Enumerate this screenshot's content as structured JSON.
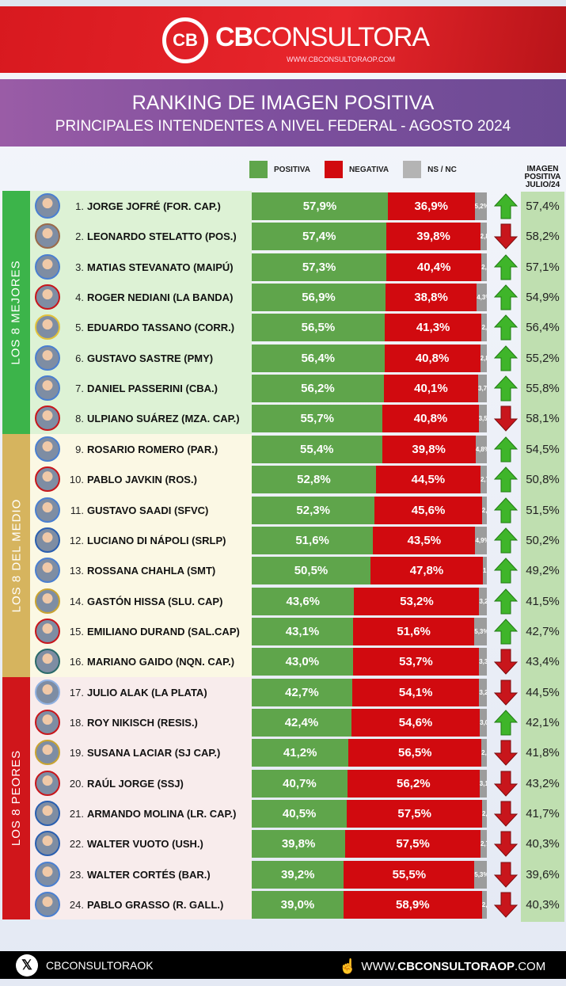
{
  "header": {
    "logo_mark": "CB",
    "brand_bold": "CB",
    "brand_rest": "CONSULTORA",
    "url": "WWW.CBCONSULTORAOP.COM"
  },
  "title": {
    "line1": "RANKING DE IMAGEN POSITIVA",
    "line2": "PRINCIPALES INTENDENTES A NIVEL FEDERAL - AGOSTO 2024"
  },
  "footer": {
    "handle": "CBCONSULTORAOK",
    "url_prefix": "WWW.",
    "url_bold": "CBCONSULTORAOP",
    "url_suffix": ".COM"
  },
  "chart_data": {
    "type": "bar",
    "stacked": true,
    "orientation": "horizontal",
    "xlim": [
      0,
      100
    ],
    "legend": [
      "POSITIVA",
      "NEGATIVA",
      "NS / NC"
    ],
    "legend_placement": "top",
    "colors": {
      "positiva": "#5fa54b",
      "negativa": "#d10a0f",
      "nsnc": "#9c9c9c",
      "up": "#3fb52a",
      "down": "#c8161c"
    },
    "previous_header": "IMAGEN POSITIVA JULIO/24",
    "groups": [
      {
        "label": "LOS 8 MEJORES",
        "color": "#3cb44a",
        "bg": "#ddf2d5",
        "from": 1,
        "to": 8
      },
      {
        "label": "LOS 8 DEL MEDIO",
        "color": "#d6b45e",
        "bg": "#fbf8e4",
        "from": 9,
        "to": 16
      },
      {
        "label": "LOS 8 PEORES",
        "color": "#d0161b",
        "bg": "#f8ecec",
        "from": 17,
        "to": 24
      }
    ],
    "rows": [
      {
        "rank": "1.",
        "name": "JORGE JOFRÉ (FOR. CAP.)",
        "positiva": "57,9%",
        "negativa": "36,9%",
        "nsnc": "5,2%",
        "trend": "up",
        "julio": "57,4%",
        "ring": "#4a7fd0"
      },
      {
        "rank": "2.",
        "name": "LEONARDO STELATTO (POS.)",
        "positiva": "57,4%",
        "negativa": "39,8%",
        "nsnc": "2,8%",
        "trend": "down",
        "julio": "58,2%",
        "ring": "#9a6a4a"
      },
      {
        "rank": "3.",
        "name": "MATIAS STEVANATO (MAIPÚ)",
        "positiva": "57,3%",
        "negativa": "40,4%",
        "nsnc": "2,3%",
        "trend": "up",
        "julio": "57,1%",
        "ring": "#4a7fd0"
      },
      {
        "rank": "4.",
        "name": "ROGER NEDIANI (LA BANDA)",
        "positiva": "56,9%",
        "negativa": "38,8%",
        "nsnc": "4,3%",
        "trend": "up",
        "julio": "54,9%",
        "ring": "#c8161c"
      },
      {
        "rank": "5.",
        "name": "EDUARDO TASSANO (CORR.)",
        "positiva": "56,5%",
        "negativa": "41,3%",
        "nsnc": "2,2%",
        "trend": "up",
        "julio": "56,4%",
        "ring": "#e2c23a"
      },
      {
        "rank": "6.",
        "name": "GUSTAVO SASTRE (PMY)",
        "positiva": "56,4%",
        "negativa": "40,8%",
        "nsnc": "2,8%",
        "trend": "up",
        "julio": "55,2%",
        "ring": "#4a7fd0"
      },
      {
        "rank": "7.",
        "name": "DANIEL PASSERINI (CBA.)",
        "positiva": "56,2%",
        "negativa": "40,1%",
        "nsnc": "3,7%",
        "trend": "up",
        "julio": "55,8%",
        "ring": "#4a7fd0"
      },
      {
        "rank": "8.",
        "name": "ULPIANO SUÁREZ (MZA. CAP.)",
        "positiva": "55,7%",
        "negativa": "40,8%",
        "nsnc": "3,5%",
        "trend": "down",
        "julio": "58,1%",
        "ring": "#c8161c"
      },
      {
        "rank": "9.",
        "name": "ROSARIO ROMERO (PAR.)",
        "positiva": "55,4%",
        "negativa": "39,8%",
        "nsnc": "4,8%",
        "trend": "up",
        "julio": "54,5%",
        "ring": "#4a7fd0"
      },
      {
        "rank": "10.",
        "name": "PABLO JAVKIN (ROS.)",
        "positiva": "52,8%",
        "negativa": "44,5%",
        "nsnc": "2,7%",
        "trend": "up",
        "julio": "50,8%",
        "ring": "#c8161c"
      },
      {
        "rank": "11.",
        "name": "GUSTAVO SAADI (SFVC)",
        "positiva": "52,3%",
        "negativa": "45,6%",
        "nsnc": "2,1%",
        "trend": "up",
        "julio": "51,5%",
        "ring": "#4a7fd0"
      },
      {
        "rank": "12.",
        "name": "LUCIANO DI NÁPOLI (SRLP)",
        "positiva": "51,6%",
        "negativa": "43,5%",
        "nsnc": "4,9%",
        "trend": "up",
        "julio": "50,2%",
        "ring": "#2a5fb0"
      },
      {
        "rank": "13.",
        "name": "ROSSANA CHAHLA (SMT)",
        "positiva": "50,5%",
        "negativa": "47,8%",
        "nsnc": "1,7%",
        "trend": "up",
        "julio": "49,2%",
        "ring": "#4a7fd0"
      },
      {
        "rank": "14.",
        "name": "GASTÓN HISSA (SLU. CAP)",
        "positiva": "43,6%",
        "negativa": "53,2%",
        "nsnc": "3,2%",
        "trend": "up",
        "julio": "41,5%",
        "ring": "#c9a431"
      },
      {
        "rank": "15.",
        "name": "EMILIANO DURAND (SAL.CAP)",
        "positiva": "43,1%",
        "negativa": "51,6%",
        "nsnc": "5,3%",
        "trend": "up",
        "julio": "42,7%",
        "ring": "#c8161c"
      },
      {
        "rank": "16.",
        "name": "MARIANO GAIDO (NQN. CAP.)",
        "positiva": "43,0%",
        "negativa": "53,7%",
        "nsnc": "3,3%",
        "trend": "down",
        "julio": "43,4%",
        "ring": "#2a6a6a"
      },
      {
        "rank": "17.",
        "name": "JULIO ALAK (LA PLATA)",
        "positiva": "42,7%",
        "negativa": "54,1%",
        "nsnc": "3,2%",
        "trend": "down",
        "julio": "44,5%",
        "ring": "#8fb0e0"
      },
      {
        "rank": "18.",
        "name": "ROY NIKISCH (RESIS.)",
        "positiva": "42,4%",
        "negativa": "54,6%",
        "nsnc": "3,0%",
        "trend": "up",
        "julio": "42,1%",
        "ring": "#c8161c"
      },
      {
        "rank": "19.",
        "name": "SUSANA LACIAR (SJ CAP.)",
        "positiva": "41,2%",
        "negativa": "56,5%",
        "nsnc": "2,3%",
        "trend": "down",
        "julio": "41,8%",
        "ring": "#c9a431"
      },
      {
        "rank": "20.",
        "name": "RAÚL JORGE (SSJ)",
        "positiva": "40,7%",
        "negativa": "56,2%",
        "nsnc": "3,1%",
        "trend": "down",
        "julio": "43,2%",
        "ring": "#c8161c"
      },
      {
        "rank": "21.",
        "name": "ARMANDO MOLINA (LR. CAP.)",
        "positiva": "40,5%",
        "negativa": "57,5%",
        "nsnc": "2,0%",
        "trend": "down",
        "julio": "41,7%",
        "ring": "#2a5fb0"
      },
      {
        "rank": "22.",
        "name": "WALTER VUOTO (USH.)",
        "positiva": "39,8%",
        "negativa": "57,5%",
        "nsnc": "2,7%",
        "trend": "down",
        "julio": "40,3%",
        "ring": "#2a5fb0"
      },
      {
        "rank": "23.",
        "name": "WALTER CORTÉS (BAR.)",
        "positiva": "39,2%",
        "negativa": "55,5%",
        "nsnc": "5,3%",
        "trend": "down",
        "julio": "39,6%",
        "ring": "#4a7fd0"
      },
      {
        "rank": "24.",
        "name": "PABLO GRASSO (R. GALL.)",
        "positiva": "39,0%",
        "negativa": "58,9%",
        "nsnc": "2,1%",
        "trend": "down",
        "julio": "40,3%",
        "ring": "#4a7fd0"
      }
    ]
  }
}
